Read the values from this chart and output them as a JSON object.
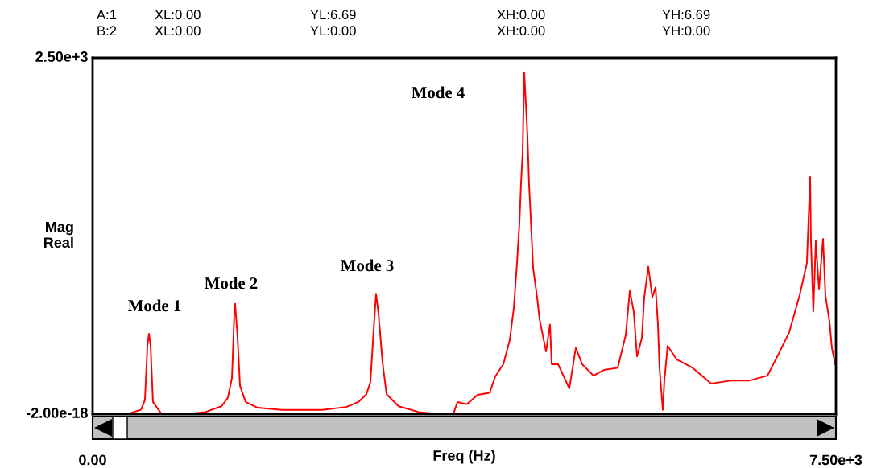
{
  "chart_data": {
    "type": "line",
    "xlabel": "Freq (Hz)",
    "ylabel": "Mag\nReal",
    "xlim": [
      0,
      7500
    ],
    "ylim": [
      -2e-18,
      2500
    ],
    "xticks": [
      {
        "value": 0,
        "label": "0.00"
      },
      {
        "value": 7500,
        "label": "7.50e+3"
      }
    ],
    "yticks": [
      {
        "value": -2e-18,
        "label": "-2.00e-18"
      },
      {
        "value": 2500,
        "label": "2.50e+3"
      }
    ],
    "series": [
      {
        "color": "#ff0000",
        "x": [
          0,
          366,
          488,
          528,
          553,
          569,
          585,
          609,
          691,
          934,
          1138,
          1300,
          1365,
          1406,
          1430,
          1438,
          1463,
          1487,
          1544,
          1666,
          1910,
          2316,
          2560,
          2681,
          2763,
          2803,
          2836,
          2860,
          2885,
          2925,
          2966,
          3088,
          3291,
          3494,
          3640,
          3681,
          3778,
          3884,
          4006,
          4063,
          4144,
          4209,
          4250,
          4282,
          4307,
          4323,
          4339,
          4355,
          4372,
          4388,
          4404,
          4420,
          4445,
          4485,
          4510,
          4575,
          4615,
          4632,
          4697,
          4810,
          4875,
          4940,
          5054,
          5160,
          5298,
          5379,
          5420,
          5460,
          5493,
          5542,
          5566,
          5607,
          5647,
          5680,
          5704,
          5720,
          5753,
          5769,
          5802,
          5891,
          6054,
          6241,
          6436,
          6622,
          6809,
          6923,
          7029,
          7134,
          7207,
          7240,
          7248,
          7272,
          7297,
          7329,
          7370,
          7394,
          7435,
          7459,
          7492
        ],
        "values": [
          5,
          5,
          30,
          100,
          480,
          565,
          480,
          85,
          5,
          0,
          15,
          55,
          115,
          255,
          705,
          775,
          535,
          200,
          85,
          45,
          30,
          30,
          50,
          85,
          140,
          225,
          595,
          845,
          705,
          365,
          140,
          55,
          15,
          0,
          0,
          85,
          70,
          135,
          150,
          265,
          350,
          520,
          745,
          1060,
          1345,
          1625,
          1835,
          2400,
          2175,
          1945,
          1610,
          1385,
          1025,
          820,
          665,
          440,
          630,
          350,
          350,
          180,
          465,
          350,
          270,
          310,
          325,
          555,
          865,
          720,
          405,
          535,
          820,
          1035,
          820,
          890,
          630,
          325,
          30,
          235,
          480,
          385,
          325,
          215,
          235,
          235,
          270,
          425,
          575,
          835,
          1060,
          1665,
          1215,
          720,
          1215,
          875,
          1230,
          835,
          650,
          465,
          350
        ]
      }
    ],
    "annotations": [
      "A:1",
      "XL:0.00",
      "YL:6.69",
      "XH:0.00",
      "YH:6.69",
      "B:2",
      "XL:0.00",
      "YL:0.00",
      "XH:0.00",
      "YH:0.00",
      "Mode 1",
      "Mode 2",
      "Mode 3",
      "Mode 4"
    ]
  }
}
